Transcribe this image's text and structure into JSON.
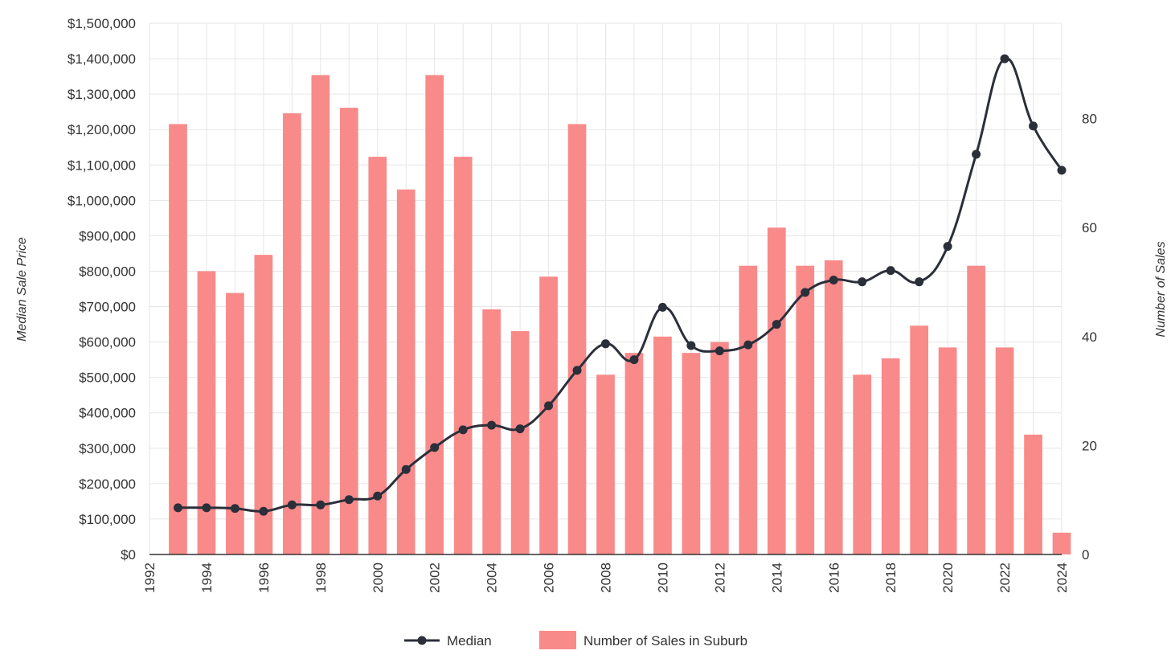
{
  "chart_data": {
    "type": "bar",
    "title": "",
    "x": [
      1993,
      1994,
      1995,
      1996,
      1997,
      1998,
      1999,
      2000,
      2001,
      2002,
      2003,
      2004,
      2005,
      2006,
      2007,
      2008,
      2009,
      2010,
      2011,
      2012,
      2013,
      2014,
      2015,
      2016,
      2017,
      2018,
      2019,
      2020,
      2021,
      2022,
      2023,
      2024
    ],
    "xlim": [
      1992,
      2024
    ],
    "xticks": [
      "1992",
      "1994",
      "1996",
      "1998",
      "2000",
      "2002",
      "2004",
      "2006",
      "2008",
      "2010",
      "2012",
      "2014",
      "2016",
      "2018",
      "2020",
      "2022",
      "2024"
    ],
    "ylabel_left": "Median Sale Price",
    "ylabel_right": "Number of Sales",
    "ylim_left": [
      0,
      1500000
    ],
    "ylim_right": [
      0,
      97.5
    ],
    "yticks_left": [
      "$0",
      "$100,000",
      "$200,000",
      "$300,000",
      "$400,000",
      "$500,000",
      "$600,000",
      "$700,000",
      "$800,000",
      "$900,000",
      "$1,000,000",
      "$1,100,000",
      "$1,200,000",
      "$1,300,000",
      "$1,400,000",
      "$1,500,000"
    ],
    "yticks_right": [
      "0",
      "20",
      "40",
      "60",
      "80"
    ],
    "series": [
      {
        "name": "Number of Sales in Suburb",
        "type": "bar",
        "axis": "right",
        "color": "#f98a8a",
        "values": [
          79,
          52,
          48,
          55,
          81,
          88,
          82,
          73,
          67,
          88,
          73,
          45,
          41,
          51,
          79,
          33,
          37,
          40,
          37,
          39,
          53,
          60,
          53,
          54,
          33,
          36,
          42,
          38,
          53,
          38,
          22,
          4
        ]
      },
      {
        "name": "Median",
        "type": "line",
        "axis": "left",
        "color": "#2b2f3a",
        "values": [
          132000,
          132000,
          130000,
          122000,
          140000,
          140000,
          155000,
          165000,
          240000,
          302000,
          352000,
          365000,
          355000,
          420000,
          520000,
          595000,
          550000,
          698000,
          590000,
          575000,
          592000,
          650000,
          740000,
          775000,
          770000,
          802000,
          770000,
          870000,
          1130000,
          1400000,
          1210000,
          1085000
        ]
      }
    ],
    "legend": {
      "position": "bottom-center",
      "items": [
        "Median",
        "Number of Sales in Suburb"
      ]
    }
  }
}
